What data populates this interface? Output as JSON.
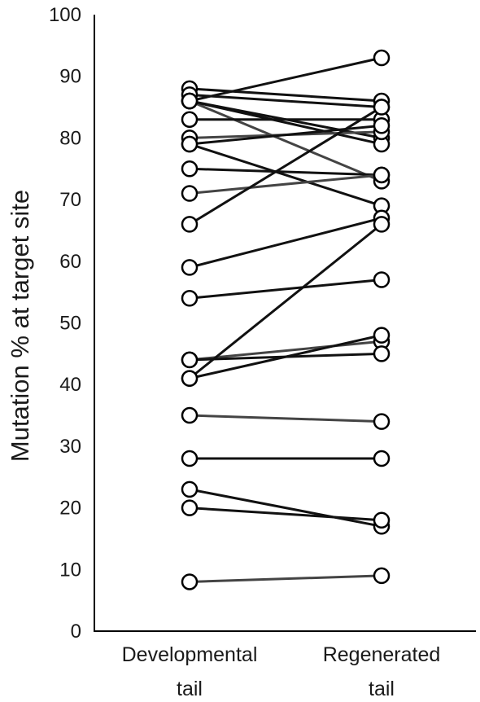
{
  "chart_data": {
    "type": "line",
    "title": "",
    "xlabel": "",
    "ylabel": "Mutation % at target site",
    "ylim": [
      0,
      100
    ],
    "yticks": [
      0,
      10,
      20,
      30,
      40,
      50,
      60,
      70,
      80,
      90,
      100
    ],
    "categories": [
      [
        "Developmental",
        "tail"
      ],
      [
        "Regenerated",
        "tail"
      ]
    ],
    "grid": false,
    "series": [
      {
        "values": [
          88,
          86
        ]
      },
      {
        "values": [
          87,
          85
        ]
      },
      {
        "values": [
          86,
          93
        ]
      },
      {
        "values": [
          86,
          73
        ]
      },
      {
        "values": [
          86,
          80
        ]
      },
      {
        "values": [
          86,
          79
        ]
      },
      {
        "values": [
          83,
          83
        ]
      },
      {
        "values": [
          80,
          81
        ]
      },
      {
        "values": [
          79,
          82
        ]
      },
      {
        "values": [
          79,
          69
        ]
      },
      {
        "values": [
          75,
          74
        ]
      },
      {
        "values": [
          71,
          74
        ]
      },
      {
        "values": [
          66,
          85
        ]
      },
      {
        "values": [
          59,
          67
        ]
      },
      {
        "values": [
          54,
          57
        ]
      },
      {
        "values": [
          44,
          47
        ]
      },
      {
        "values": [
          44,
          45
        ]
      },
      {
        "values": [
          41,
          66
        ]
      },
      {
        "values": [
          41,
          48
        ]
      },
      {
        "values": [
          35,
          34
        ]
      },
      {
        "values": [
          28,
          28
        ]
      },
      {
        "values": [
          23,
          17
        ]
      },
      {
        "values": [
          20,
          18
        ]
      },
      {
        "values": [
          8,
          9
        ]
      }
    ]
  },
  "colors": {
    "line": "#111111",
    "line_gray": "#444444",
    "marker_fill": "#ffffff",
    "marker_stroke": "#000000",
    "axis": "#000000"
  }
}
